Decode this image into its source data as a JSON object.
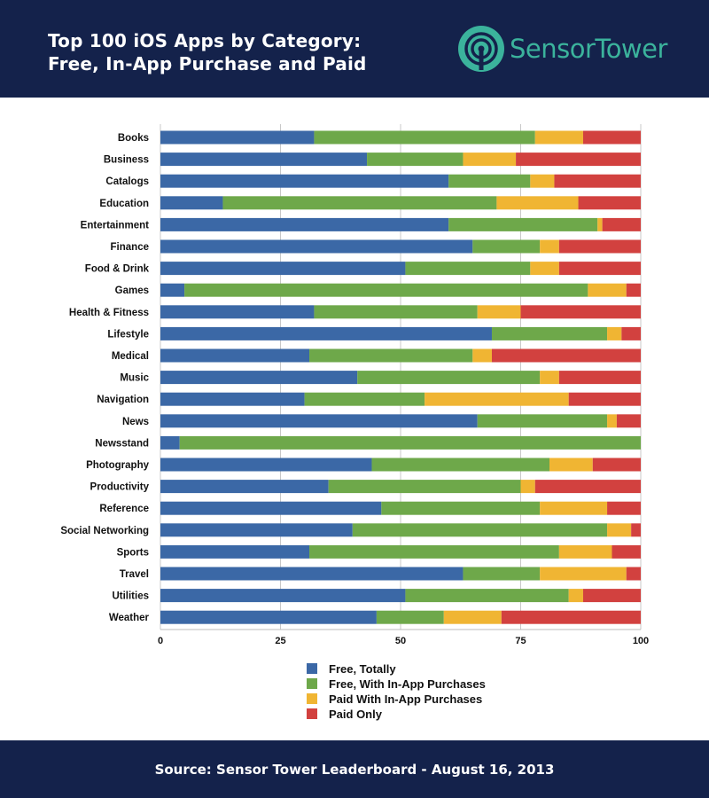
{
  "header": {
    "title_line1": "Top 100 iOS Apps by Category:",
    "title_line2": "Free, In-App Purchase and Paid",
    "logo_text": "SensorTower",
    "logo_text_sensor": "Sensor",
    "logo_text_tower": "Tower"
  },
  "footer": {
    "source": "Source: Sensor Tower Leaderboard - August 16, 2013"
  },
  "colors": {
    "header_bg": "#14224b",
    "brand_teal": "#3bb39c"
  },
  "chart_data": {
    "type": "bar",
    "orientation": "horizontal",
    "stacked": true,
    "title": "Top 100 iOS Apps by Category: Free, In-App Purchase and Paid",
    "xlabel": "",
    "ylabel": "",
    "xlim": [
      0,
      100
    ],
    "xticks": [
      0,
      25,
      50,
      75,
      100
    ],
    "grid": true,
    "legend_position": "bottom",
    "categories": [
      "Books",
      "Business",
      "Catalogs",
      "Education",
      "Entertainment",
      "Finance",
      "Food & Drink",
      "Games",
      "Health & Fitness",
      "Lifestyle",
      "Medical",
      "Music",
      "Navigation",
      "News",
      "Newsstand",
      "Photography",
      "Productivity",
      "Reference",
      "Social Networking",
      "Sports",
      "Travel",
      "Utilities",
      "Weather"
    ],
    "series": [
      {
        "name": "Free, Totally",
        "color": "#3b68a6",
        "values": [
          32,
          43,
          60,
          13,
          60,
          65,
          51,
          5,
          32,
          69,
          31,
          41,
          30,
          66,
          4,
          44,
          35,
          46,
          40,
          31,
          63,
          51,
          45
        ]
      },
      {
        "name": "Free, With In-App Purchases",
        "color": "#6ea84a",
        "values": [
          46,
          20,
          17,
          57,
          31,
          14,
          26,
          84,
          34,
          24,
          34,
          38,
          25,
          27,
          96,
          37,
          40,
          33,
          53,
          52,
          16,
          34,
          14
        ]
      },
      {
        "name": "Paid With In-App Purchases",
        "color": "#f0b533",
        "values": [
          10,
          11,
          5,
          17,
          1,
          4,
          6,
          8,
          9,
          3,
          4,
          4,
          30,
          2,
          0,
          9,
          3,
          14,
          5,
          11,
          18,
          3,
          12
        ]
      },
      {
        "name": "Paid Only",
        "color": "#d2413f",
        "values": [
          12,
          26,
          18,
          13,
          8,
          17,
          17,
          3,
          25,
          4,
          31,
          17,
          15,
          5,
          0,
          10,
          22,
          7,
          2,
          6,
          3,
          12,
          29
        ]
      }
    ]
  }
}
